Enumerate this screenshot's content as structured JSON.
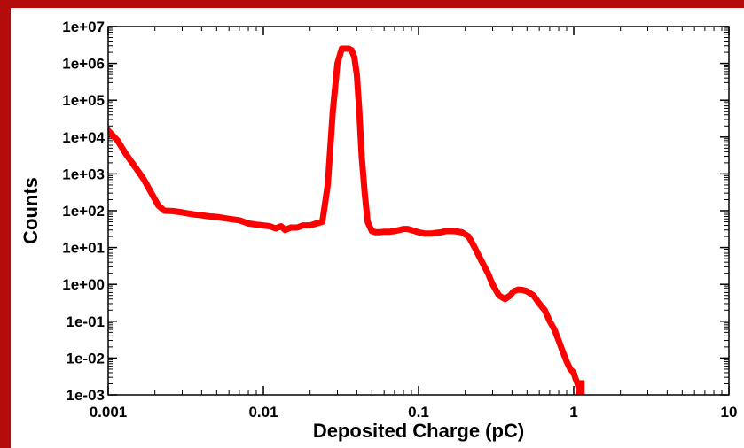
{
  "chart_data": {
    "type": "line",
    "title": "",
    "xlabel": "Deposited Charge (pC)",
    "ylabel": "Counts",
    "x_scale": "log",
    "y_scale": "log",
    "xlim": [
      0.001,
      10
    ],
    "ylim": [
      0.001,
      10000000
    ],
    "x_ticks": [
      {
        "value": 0.001,
        "label": "0.001"
      },
      {
        "value": 0.01,
        "label": "0.01"
      },
      {
        "value": 0.1,
        "label": "0.1"
      },
      {
        "value": 1,
        "label": "1"
      },
      {
        "value": 10,
        "label": "10"
      }
    ],
    "y_ticks": [
      {
        "value": 0.001,
        "label": "1e-03"
      },
      {
        "value": 0.01,
        "label": "1e-02"
      },
      {
        "value": 0.1,
        "label": "1e-01"
      },
      {
        "value": 1,
        "label": "1e+00"
      },
      {
        "value": 10,
        "label": "1e+01"
      },
      {
        "value": 100,
        "label": "1e+02"
      },
      {
        "value": 1000,
        "label": "1e+03"
      },
      {
        "value": 10000,
        "label": "1e+04"
      },
      {
        "value": 100000,
        "label": "1e+05"
      },
      {
        "value": 1000000,
        "label": "1e+06"
      },
      {
        "value": 10000000,
        "label": "1e+07"
      }
    ],
    "grid": false,
    "legend": "none",
    "series": [
      {
        "color": "#ff0000",
        "x": [
          0.001,
          0.00115,
          0.0013,
          0.0015,
          0.0017,
          0.0019,
          0.0021,
          0.0023,
          0.0026,
          0.003,
          0.0035,
          0.004,
          0.0045,
          0.005,
          0.006,
          0.007,
          0.008,
          0.009,
          0.01,
          0.011,
          0.012,
          0.013,
          0.0138,
          0.015,
          0.0165,
          0.018,
          0.02,
          0.022,
          0.024,
          0.026,
          0.028,
          0.03,
          0.032,
          0.034,
          0.0355,
          0.037,
          0.0385,
          0.04,
          0.0415,
          0.043,
          0.045,
          0.047,
          0.05,
          0.053,
          0.056,
          0.06,
          0.065,
          0.07,
          0.075,
          0.08,
          0.085,
          0.09,
          0.1,
          0.11,
          0.12,
          0.13,
          0.14,
          0.15,
          0.17,
          0.19,
          0.21,
          0.23,
          0.25,
          0.28,
          0.3,
          0.33,
          0.36,
          0.39,
          0.41,
          0.44,
          0.47,
          0.5,
          0.55,
          0.6,
          0.65,
          0.7,
          0.75,
          0.8,
          0.85,
          0.9,
          0.95,
          1.0,
          1.02,
          1.05,
          1.08,
          1.1
        ],
        "y": [
          15000,
          8000,
          3500,
          1500,
          700,
          300,
          140,
          100,
          98,
          90,
          80,
          75,
          70,
          68,
          60,
          55,
          45,
          42,
          40,
          38,
          33,
          38,
          30,
          35,
          35,
          40,
          40,
          45,
          50,
          500,
          50000,
          1000000,
          2500000,
          2500000,
          2500000,
          2300000,
          1500000,
          500000,
          50000,
          3000,
          300,
          50,
          28,
          26,
          26,
          27,
          27,
          28,
          30,
          32,
          32,
          30,
          26,
          24,
          24,
          25,
          26,
          28,
          28,
          26,
          20,
          10,
          5,
          2,
          1,
          0.5,
          0.4,
          0.5,
          0.65,
          0.72,
          0.7,
          0.65,
          0.5,
          0.3,
          0.2,
          0.1,
          0.06,
          0.03,
          0.015,
          0.008,
          0.005,
          0.004,
          0.003,
          0.0022,
          0.0015,
          0.001
        ]
      }
    ]
  }
}
